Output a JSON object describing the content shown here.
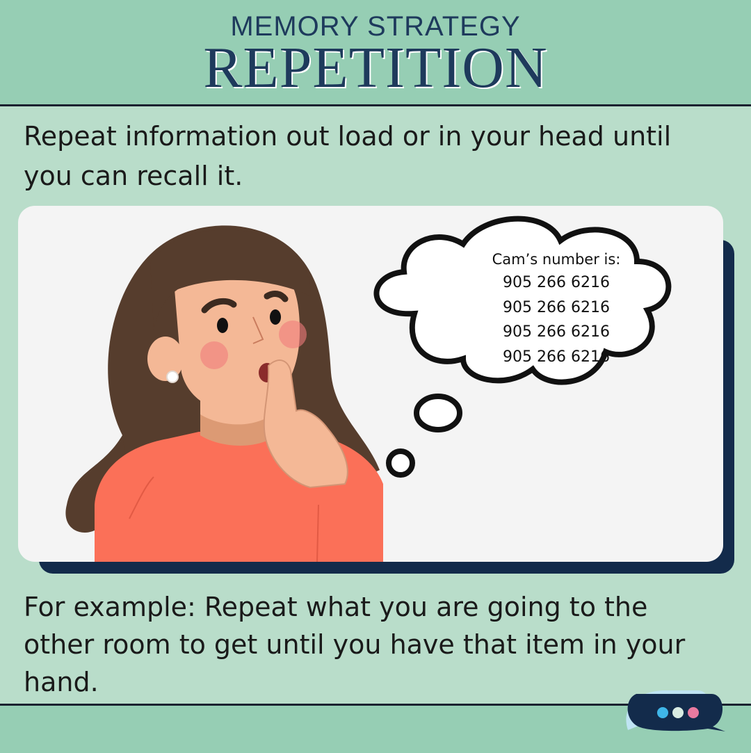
{
  "header": {
    "subtitle": "MEMORY STRATEGY",
    "title": "REPETITION"
  },
  "intro_text": "Repeat information out load or in your head until you can recall it.",
  "thought_bubble": {
    "label": "Cam’s number is:",
    "numbers": [
      "905 266 6216",
      "905 266 6216",
      "905 266 6216",
      "905 266 6216"
    ]
  },
  "example_text": "For example: Repeat what you are going to the other room to get until you have that item in your hand.",
  "colors": {
    "header_bg": "#96ceb4",
    "page_bg": "#b9ddca",
    "title": "#1e3a5c",
    "card_shadow": "#132b4b",
    "dot_blue": "#3fb6e8",
    "dot_white": "#d9ece3",
    "dot_pink": "#e97aa0"
  }
}
